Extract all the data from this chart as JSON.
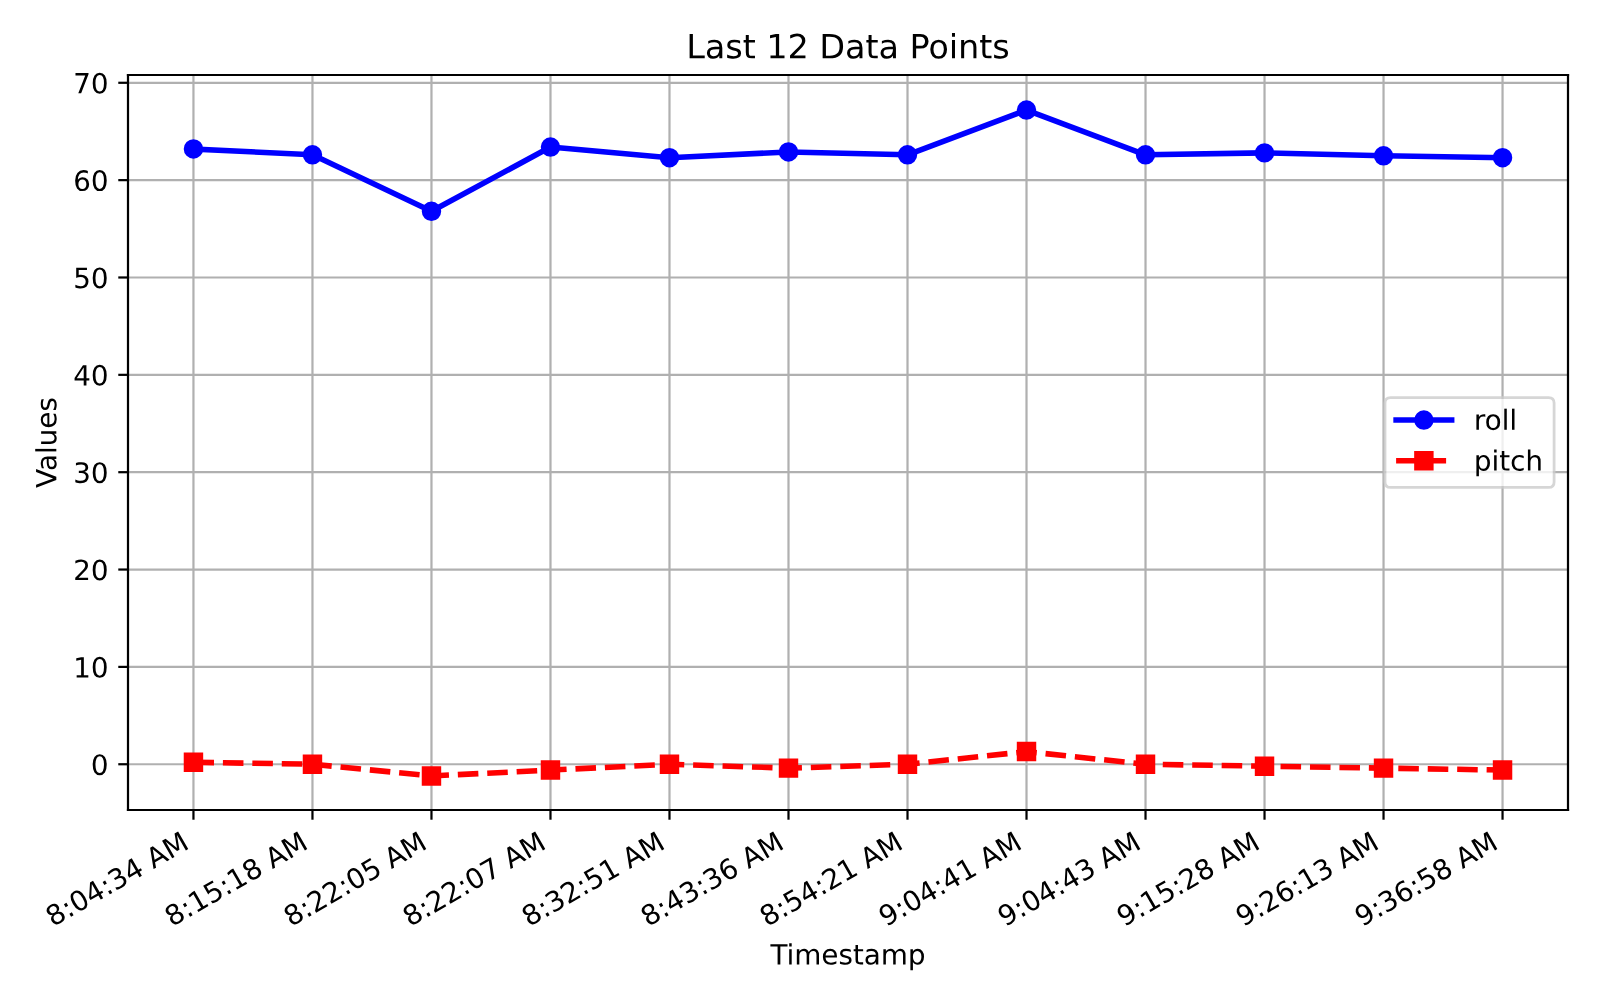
{
  "chart_data": {
    "type": "line",
    "title": "Last 12 Data Points",
    "xlabel": "Timestamp",
    "ylabel": "Values",
    "categories": [
      "8:04:34 AM",
      "8:15:18 AM",
      "8:22:05 AM",
      "8:22:07 AM",
      "8:32:51 AM",
      "8:43:36 AM",
      "8:54:21 AM",
      "9:04:41 AM",
      "9:04:43 AM",
      "9:15:28 AM",
      "9:26:13 AM",
      "9:36:58 AM"
    ],
    "series": [
      {
        "name": "roll",
        "color": "#0000ff",
        "marker": "circle",
        "line_style": "solid",
        "values": [
          63.2,
          62.6,
          56.8,
          63.4,
          62.3,
          62.9,
          62.6,
          67.2,
          62.6,
          62.8,
          62.5,
          62.3
        ]
      },
      {
        "name": "pitch",
        "color": "#ff0000",
        "marker": "square",
        "line_style": "dashed",
        "values": [
          0.2,
          0.0,
          -1.2,
          -0.6,
          0.0,
          -0.4,
          0.0,
          1.3,
          0.0,
          -0.2,
          -0.4,
          -0.6
        ]
      }
    ],
    "ylim": [
      -4.7,
      70.8
    ],
    "yticks": [
      0,
      10,
      20,
      30,
      40,
      50,
      60,
      70
    ],
    "grid": true,
    "legend": "center right"
  }
}
